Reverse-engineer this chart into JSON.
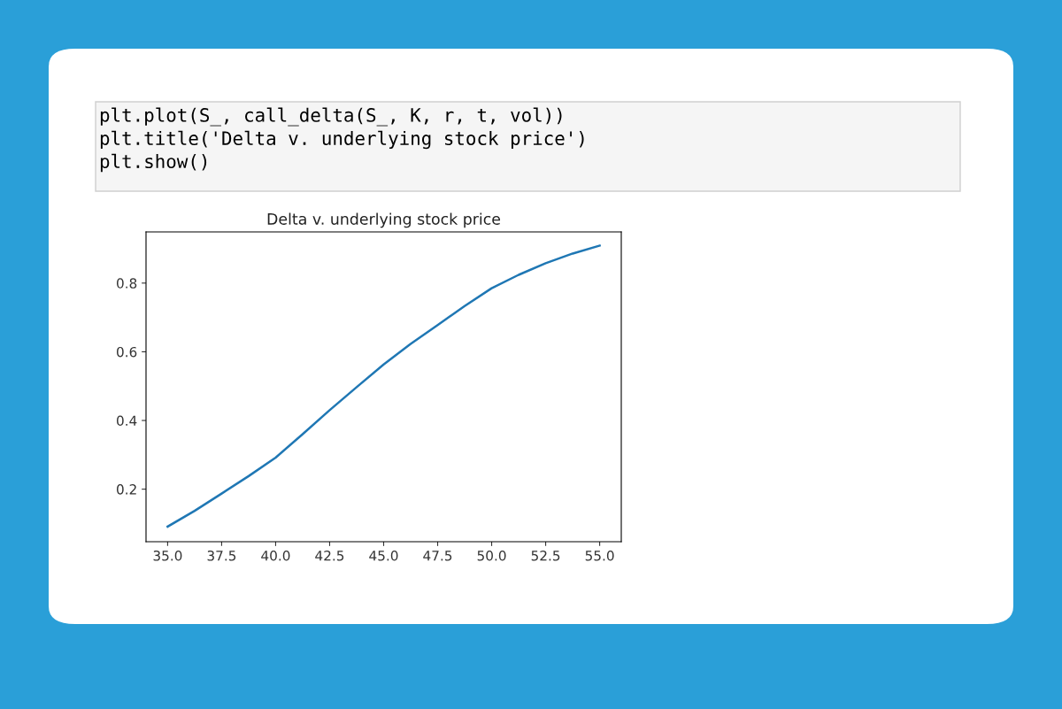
{
  "chart_data": {
    "type": "line",
    "title": "Delta v. underlying stock price",
    "x": [
      35,
      36.25,
      37.5,
      38.75,
      40,
      41.25,
      42.5,
      43.75,
      45,
      46.25,
      47.5,
      48.75,
      50,
      51.25,
      52.5,
      53.75,
      55
    ],
    "series": [
      {
        "color": "#1f77b4",
        "values": [
          0.091,
          0.137,
          0.187,
          0.238,
          0.292,
          0.36,
          0.43,
          0.497,
          0.563,
          0.623,
          0.678,
          0.733,
          0.785,
          0.824,
          0.858,
          0.886,
          0.909
        ]
      }
    ],
    "xlim": [
      34,
      56
    ],
    "xticks": [
      {
        "value": 35,
        "label": "35.0"
      },
      {
        "value": 37.5,
        "label": "37.5"
      },
      {
        "value": 40,
        "label": "40.0"
      },
      {
        "value": 42.5,
        "label": "42.5"
      },
      {
        "value": 45,
        "label": "45.0"
      },
      {
        "value": 47.5,
        "label": "47.5"
      },
      {
        "value": 50,
        "label": "50.0"
      },
      {
        "value": 52.5,
        "label": "52.5"
      },
      {
        "value": 55,
        "label": "55.0"
      }
    ],
    "ylim": [
      0.047,
      0.949
    ],
    "yticks": [
      0.2,
      0.4,
      0.6,
      0.8
    ],
    "grid": false,
    "annotations": [
      "plt.plot(S_, call_delta(S_, K, r, t, vol))",
      "plt.title('Delta v. underlying stock price')",
      "plt.show()"
    ]
  }
}
